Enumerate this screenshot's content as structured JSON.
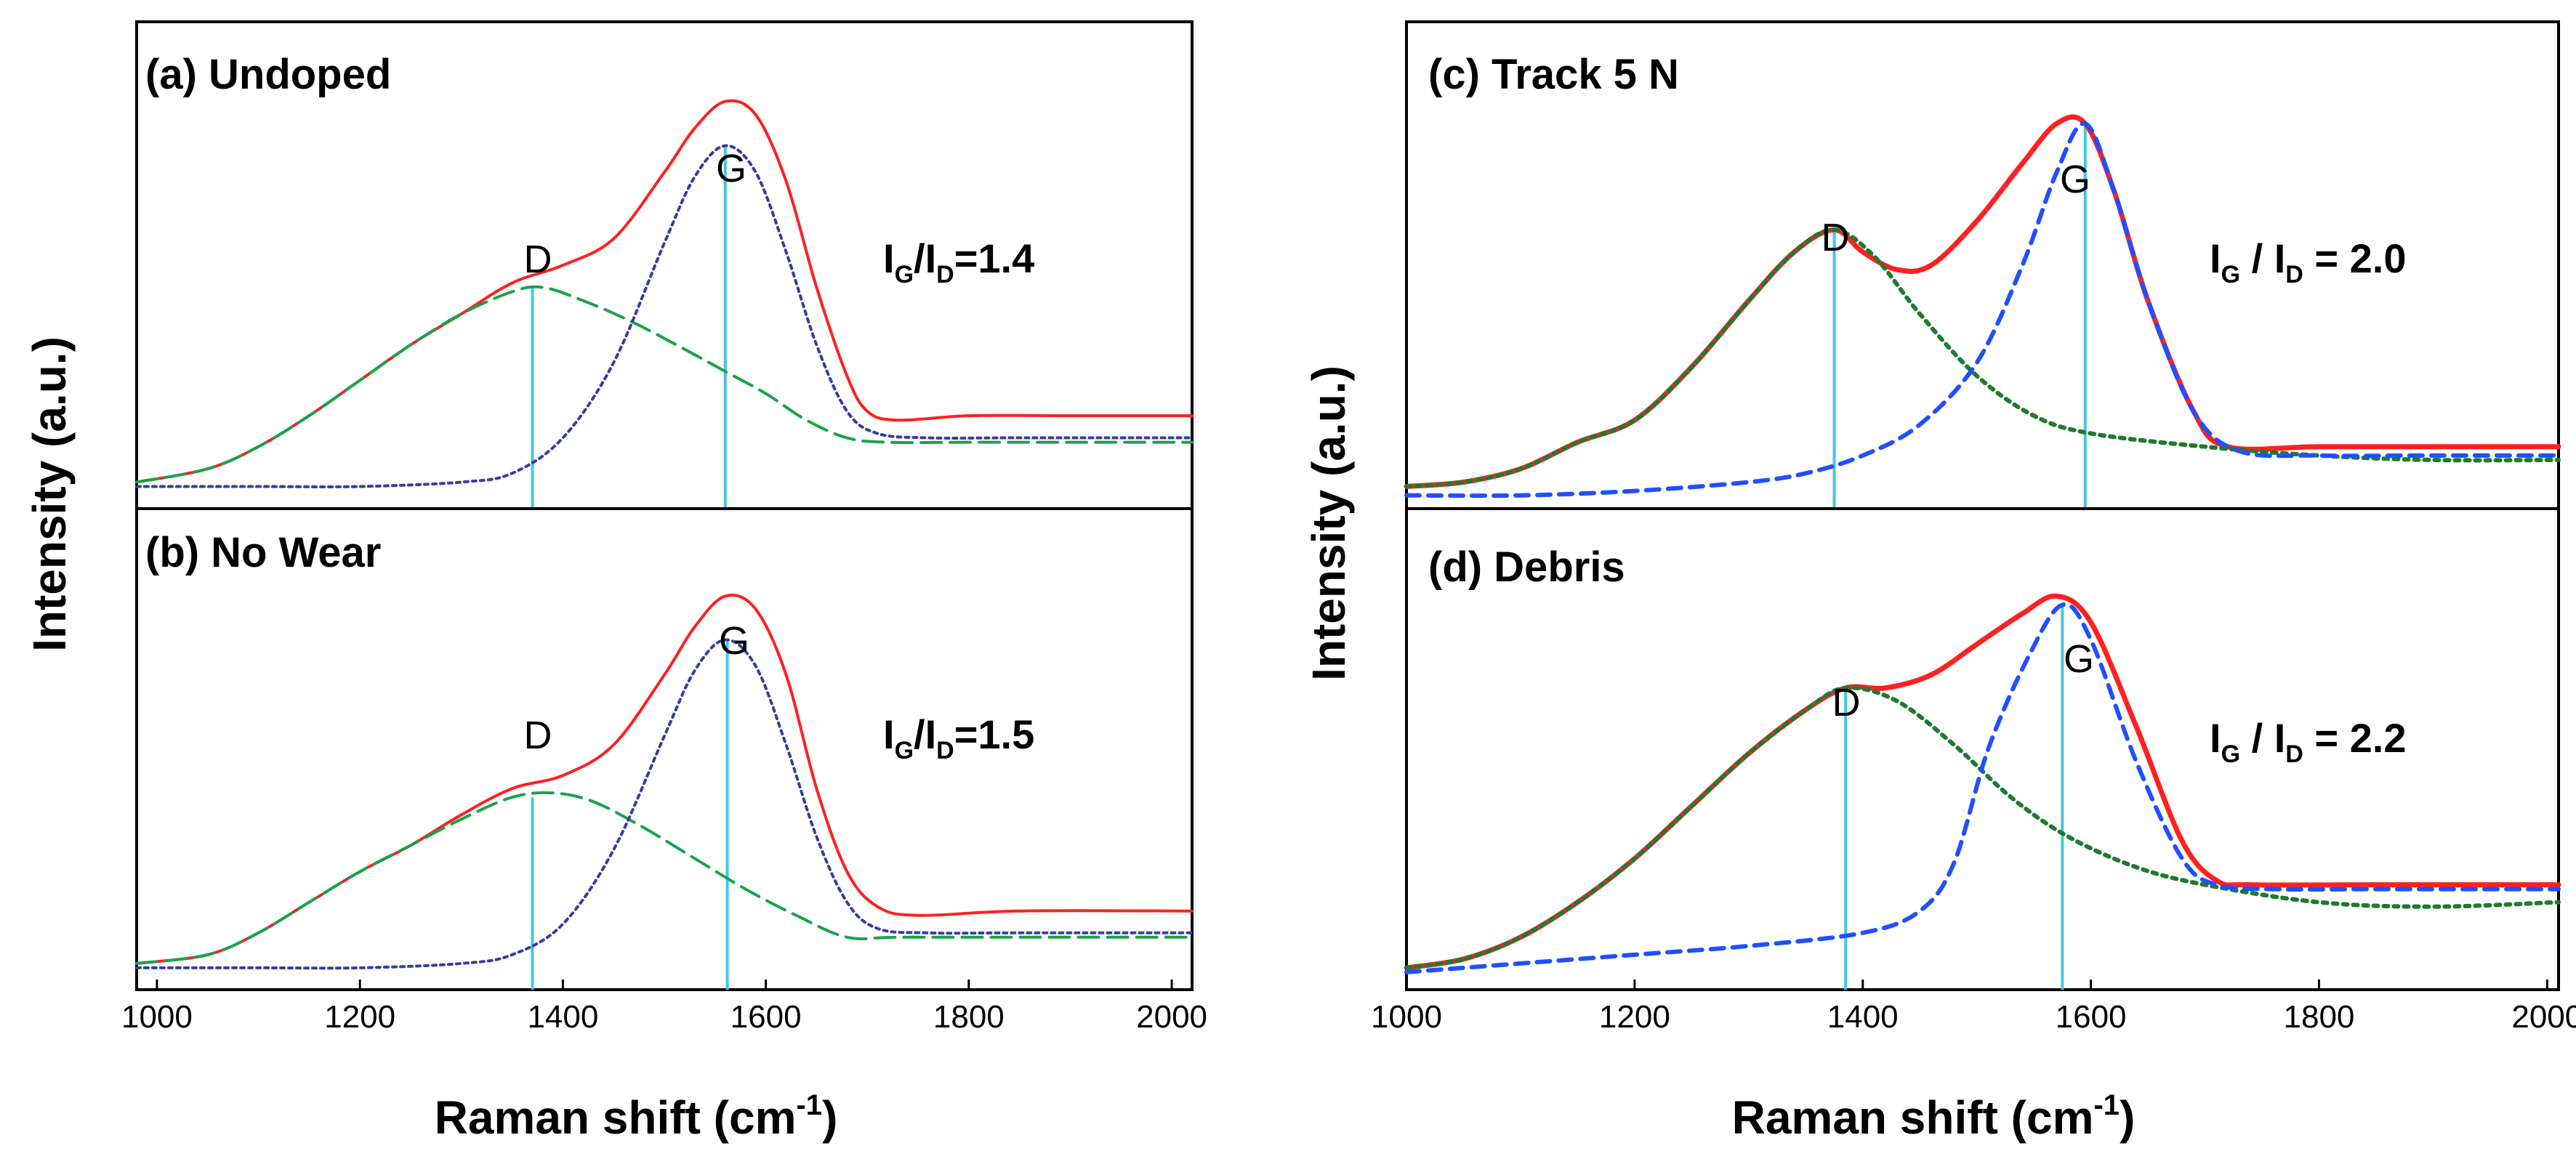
{
  "colors": {
    "total": "#ff2020",
    "d_fit_left": "#19a34a",
    "g_fit_left": "#3b3ba0",
    "d_fit_right": "#1f7a2e",
    "g_fit_right": "#1f4fff",
    "marker": "#40c8e0",
    "axes": "#000000"
  },
  "chart_data": [
    {
      "type": "line",
      "panel": "(a) Undoped",
      "title": "(a) Undoped",
      "peak_labels": {
        "D": "D",
        "G": "G"
      },
      "ratio": {
        "I1": "I",
        "s1": "G",
        "slash": "/",
        "I2": "I",
        "s2": "D",
        "eq": "=1.4"
      },
      "xlim": [
        980,
        2020
      ],
      "ylim": [
        0,
        1.1
      ],
      "markers": {
        "D": 1370,
        "G": 1560
      },
      "series": [
        {
          "role": "total",
          "style": "solid",
          "points": [
            [
              980,
              0.06
            ],
            [
              1050,
              0.09
            ],
            [
              1100,
              0.14
            ],
            [
              1150,
              0.21
            ],
            [
              1200,
              0.29
            ],
            [
              1250,
              0.37
            ],
            [
              1300,
              0.44
            ],
            [
              1350,
              0.51
            ],
            [
              1400,
              0.55
            ],
            [
              1450,
              0.61
            ],
            [
              1500,
              0.76
            ],
            [
              1530,
              0.86
            ],
            [
              1560,
              0.92
            ],
            [
              1590,
              0.89
            ],
            [
              1620,
              0.74
            ],
            [
              1650,
              0.5
            ],
            [
              1680,
              0.3
            ],
            [
              1700,
              0.22
            ],
            [
              1730,
              0.2
            ],
            [
              1800,
              0.21
            ],
            [
              1900,
              0.21
            ],
            [
              2020,
              0.21
            ]
          ]
        },
        {
          "role": "D-fit",
          "style": "dashed",
          "points": [
            [
              980,
              0.06
            ],
            [
              1050,
              0.09
            ],
            [
              1100,
              0.14
            ],
            [
              1150,
              0.21
            ],
            [
              1200,
              0.29
            ],
            [
              1250,
              0.37
            ],
            [
              1300,
              0.44
            ],
            [
              1350,
              0.49
            ],
            [
              1380,
              0.5
            ],
            [
              1420,
              0.47
            ],
            [
              1470,
              0.42
            ],
            [
              1520,
              0.36
            ],
            [
              1560,
              0.31
            ],
            [
              1600,
              0.26
            ],
            [
              1640,
              0.2
            ],
            [
              1680,
              0.16
            ],
            [
              1720,
              0.15
            ],
            [
              1800,
              0.15
            ],
            [
              1900,
              0.15
            ],
            [
              2020,
              0.15
            ]
          ]
        },
        {
          "role": "G-fit",
          "style": "dotted",
          "points": [
            [
              980,
              0.05
            ],
            [
              1100,
              0.05
            ],
            [
              1200,
              0.05
            ],
            [
              1300,
              0.06
            ],
            [
              1350,
              0.08
            ],
            [
              1400,
              0.16
            ],
            [
              1450,
              0.33
            ],
            [
              1500,
              0.6
            ],
            [
              1530,
              0.75
            ],
            [
              1560,
              0.82
            ],
            [
              1590,
              0.76
            ],
            [
              1620,
              0.58
            ],
            [
              1650,
              0.37
            ],
            [
              1680,
              0.22
            ],
            [
              1710,
              0.17
            ],
            [
              1760,
              0.16
            ],
            [
              1850,
              0.16
            ],
            [
              2020,
              0.16
            ]
          ]
        }
      ]
    },
    {
      "type": "line",
      "panel": "(b) No Wear",
      "title": "(b) No Wear",
      "peak_labels": {
        "D": "D",
        "G": "G"
      },
      "ratio": {
        "I1": "I",
        "s1": "G",
        "slash": "/",
        "I2": "I",
        "s2": "D",
        "eq": "=1.5"
      },
      "xlim": [
        980,
        2020
      ],
      "ylim": [
        0,
        1.1
      ],
      "xticks": [
        1000,
        1200,
        1400,
        1600,
        1800,
        2000
      ],
      "markers": {
        "D": 1370,
        "G": 1562
      },
      "series": [
        {
          "role": "total",
          "style": "solid",
          "points": [
            [
              980,
              0.06
            ],
            [
              1050,
              0.08
            ],
            [
              1100,
              0.13
            ],
            [
              1150,
              0.2
            ],
            [
              1200,
              0.27
            ],
            [
              1250,
              0.33
            ],
            [
              1300,
              0.4
            ],
            [
              1350,
              0.46
            ],
            [
              1400,
              0.49
            ],
            [
              1450,
              0.56
            ],
            [
              1500,
              0.72
            ],
            [
              1530,
              0.83
            ],
            [
              1560,
              0.9
            ],
            [
              1590,
              0.87
            ],
            [
              1620,
              0.72
            ],
            [
              1650,
              0.46
            ],
            [
              1680,
              0.27
            ],
            [
              1710,
              0.19
            ],
            [
              1750,
              0.17
            ],
            [
              1850,
              0.18
            ],
            [
              2020,
              0.18
            ]
          ]
        },
        {
          "role": "D-fit",
          "style": "dashed",
          "points": [
            [
              980,
              0.06
            ],
            [
              1050,
              0.08
            ],
            [
              1100,
              0.13
            ],
            [
              1150,
              0.2
            ],
            [
              1200,
              0.27
            ],
            [
              1250,
              0.33
            ],
            [
              1300,
              0.39
            ],
            [
              1350,
              0.44
            ],
            [
              1390,
              0.45
            ],
            [
              1430,
              0.43
            ],
            [
              1480,
              0.37
            ],
            [
              1530,
              0.3
            ],
            [
              1580,
              0.23
            ],
            [
              1630,
              0.17
            ],
            [
              1680,
              0.12
            ],
            [
              1730,
              0.12
            ],
            [
              1850,
              0.12
            ],
            [
              2020,
              0.12
            ]
          ]
        },
        {
          "role": "G-fit",
          "style": "dotted",
          "points": [
            [
              980,
              0.05
            ],
            [
              1100,
              0.05
            ],
            [
              1200,
              0.05
            ],
            [
              1300,
              0.06
            ],
            [
              1350,
              0.08
            ],
            [
              1400,
              0.15
            ],
            [
              1450,
              0.32
            ],
            [
              1500,
              0.58
            ],
            [
              1530,
              0.73
            ],
            [
              1560,
              0.8
            ],
            [
              1590,
              0.74
            ],
            [
              1620,
              0.56
            ],
            [
              1650,
              0.35
            ],
            [
              1680,
              0.2
            ],
            [
              1710,
              0.14
            ],
            [
              1760,
              0.13
            ],
            [
              1850,
              0.13
            ],
            [
              2020,
              0.13
            ]
          ]
        }
      ]
    },
    {
      "type": "line",
      "panel": "(c) Track 5 N",
      "title": "(c) Track 5 N",
      "peak_labels": {
        "D": "D",
        "G": "G"
      },
      "ratio": {
        "I1": "I",
        "s1": "G",
        "slash": " / ",
        "I2": "I",
        "s2": "D",
        "eq": " = 2.0"
      },
      "xlim": [
        1000,
        2010
      ],
      "ylim": [
        0,
        1.1
      ],
      "markers": {
        "D": 1375,
        "G": 1595
      },
      "series": [
        {
          "role": "total",
          "style": "solid",
          "points": [
            [
              1000,
              0.05
            ],
            [
              1050,
              0.06
            ],
            [
              1100,
              0.09
            ],
            [
              1150,
              0.15
            ],
            [
              1200,
              0.2
            ],
            [
              1250,
              0.32
            ],
            [
              1300,
              0.47
            ],
            [
              1340,
              0.58
            ],
            [
              1375,
              0.63
            ],
            [
              1400,
              0.58
            ],
            [
              1430,
              0.54
            ],
            [
              1460,
              0.55
            ],
            [
              1500,
              0.65
            ],
            [
              1540,
              0.78
            ],
            [
              1570,
              0.87
            ],
            [
              1595,
              0.87
            ],
            [
              1620,
              0.72
            ],
            [
              1650,
              0.47
            ],
            [
              1690,
              0.22
            ],
            [
              1720,
              0.14
            ],
            [
              1800,
              0.14
            ],
            [
              1900,
              0.14
            ],
            [
              2010,
              0.14
            ]
          ]
        },
        {
          "role": "D-fit",
          "style": "dotted",
          "points": [
            [
              1000,
              0.05
            ],
            [
              1050,
              0.06
            ],
            [
              1100,
              0.09
            ],
            [
              1150,
              0.15
            ],
            [
              1200,
              0.2
            ],
            [
              1250,
              0.32
            ],
            [
              1300,
              0.47
            ],
            [
              1340,
              0.58
            ],
            [
              1375,
              0.63
            ],
            [
              1410,
              0.57
            ],
            [
              1450,
              0.44
            ],
            [
              1500,
              0.3
            ],
            [
              1550,
              0.21
            ],
            [
              1600,
              0.17
            ],
            [
              1700,
              0.14
            ],
            [
              1800,
              0.12
            ],
            [
              1900,
              0.11
            ],
            [
              2010,
              0.11
            ]
          ]
        },
        {
          "role": "G-fit",
          "style": "dashed",
          "points": [
            [
              1000,
              0.03
            ],
            [
              1100,
              0.03
            ],
            [
              1200,
              0.04
            ],
            [
              1300,
              0.06
            ],
            [
              1350,
              0.08
            ],
            [
              1400,
              0.12
            ],
            [
              1450,
              0.19
            ],
            [
              1500,
              0.33
            ],
            [
              1540,
              0.55
            ],
            [
              1570,
              0.76
            ],
            [
              1595,
              0.87
            ],
            [
              1620,
              0.72
            ],
            [
              1650,
              0.47
            ],
            [
              1690,
              0.22
            ],
            [
              1730,
              0.13
            ],
            [
              1800,
              0.12
            ],
            [
              1900,
              0.12
            ],
            [
              2010,
              0.12
            ]
          ]
        }
      ]
    },
    {
      "type": "line",
      "panel": "(d) Debris",
      "title": "(d) Debris",
      "peak_labels": {
        "D": "D",
        "G": "G"
      },
      "ratio": {
        "I1": "I",
        "s1": "G",
        "slash": " / ",
        "I2": "I",
        "s2": "D",
        "eq": " = 2.2"
      },
      "xlim": [
        1000,
        2010
      ],
      "ylim": [
        0,
        1.1
      ],
      "xticks": [
        1000,
        1200,
        1400,
        1600,
        1800,
        2000
      ],
      "markers": {
        "D": 1385,
        "G": 1575
      },
      "series": [
        {
          "role": "total",
          "style": "solid",
          "points": [
            [
              1000,
              0.05
            ],
            [
              1050,
              0.07
            ],
            [
              1100,
              0.12
            ],
            [
              1150,
              0.2
            ],
            [
              1200,
              0.3
            ],
            [
              1250,
              0.42
            ],
            [
              1300,
              0.54
            ],
            [
              1350,
              0.64
            ],
            [
              1385,
              0.69
            ],
            [
              1420,
              0.69
            ],
            [
              1460,
              0.72
            ],
            [
              1500,
              0.79
            ],
            [
              1540,
              0.86
            ],
            [
              1570,
              0.9
            ],
            [
              1600,
              0.84
            ],
            [
              1640,
              0.6
            ],
            [
              1680,
              0.34
            ],
            [
              1710,
              0.25
            ],
            [
              1740,
              0.24
            ],
            [
              1850,
              0.24
            ],
            [
              2010,
              0.24
            ]
          ]
        },
        {
          "role": "D-fit",
          "style": "dotted",
          "points": [
            [
              1000,
              0.05
            ],
            [
              1050,
              0.07
            ],
            [
              1100,
              0.12
            ],
            [
              1150,
              0.2
            ],
            [
              1200,
              0.3
            ],
            [
              1250,
              0.42
            ],
            [
              1300,
              0.54
            ],
            [
              1350,
              0.64
            ],
            [
              1385,
              0.69
            ],
            [
              1430,
              0.66
            ],
            [
              1480,
              0.56
            ],
            [
              1530,
              0.44
            ],
            [
              1580,
              0.35
            ],
            [
              1640,
              0.28
            ],
            [
              1700,
              0.24
            ],
            [
              1800,
              0.2
            ],
            [
              1900,
              0.19
            ],
            [
              2010,
              0.2
            ]
          ]
        },
        {
          "role": "G-fit",
          "style": "dashed",
          "points": [
            [
              1000,
              0.04
            ],
            [
              1100,
              0.06
            ],
            [
              1200,
              0.08
            ],
            [
              1300,
              0.1
            ],
            [
              1400,
              0.13
            ],
            [
              1450,
              0.18
            ],
            [
              1480,
              0.29
            ],
            [
              1510,
              0.55
            ],
            [
              1545,
              0.76
            ],
            [
              1575,
              0.88
            ],
            [
              1600,
              0.8
            ],
            [
              1640,
              0.52
            ],
            [
              1680,
              0.3
            ],
            [
              1710,
              0.24
            ],
            [
              1760,
              0.23
            ],
            [
              1850,
              0.23
            ],
            [
              2010,
              0.23
            ]
          ]
        }
      ]
    }
  ],
  "axis_titles": {
    "left_y": "Intensity (a.u.)",
    "right_y": "Intensity (a.u.)",
    "left_x_base": "Raman shift (cm",
    "left_x_sup": "-1",
    "left_x_end": ")",
    "right_x_base": "Raman shift (cm",
    "right_x_sup": "-1",
    "right_x_end": ")"
  }
}
